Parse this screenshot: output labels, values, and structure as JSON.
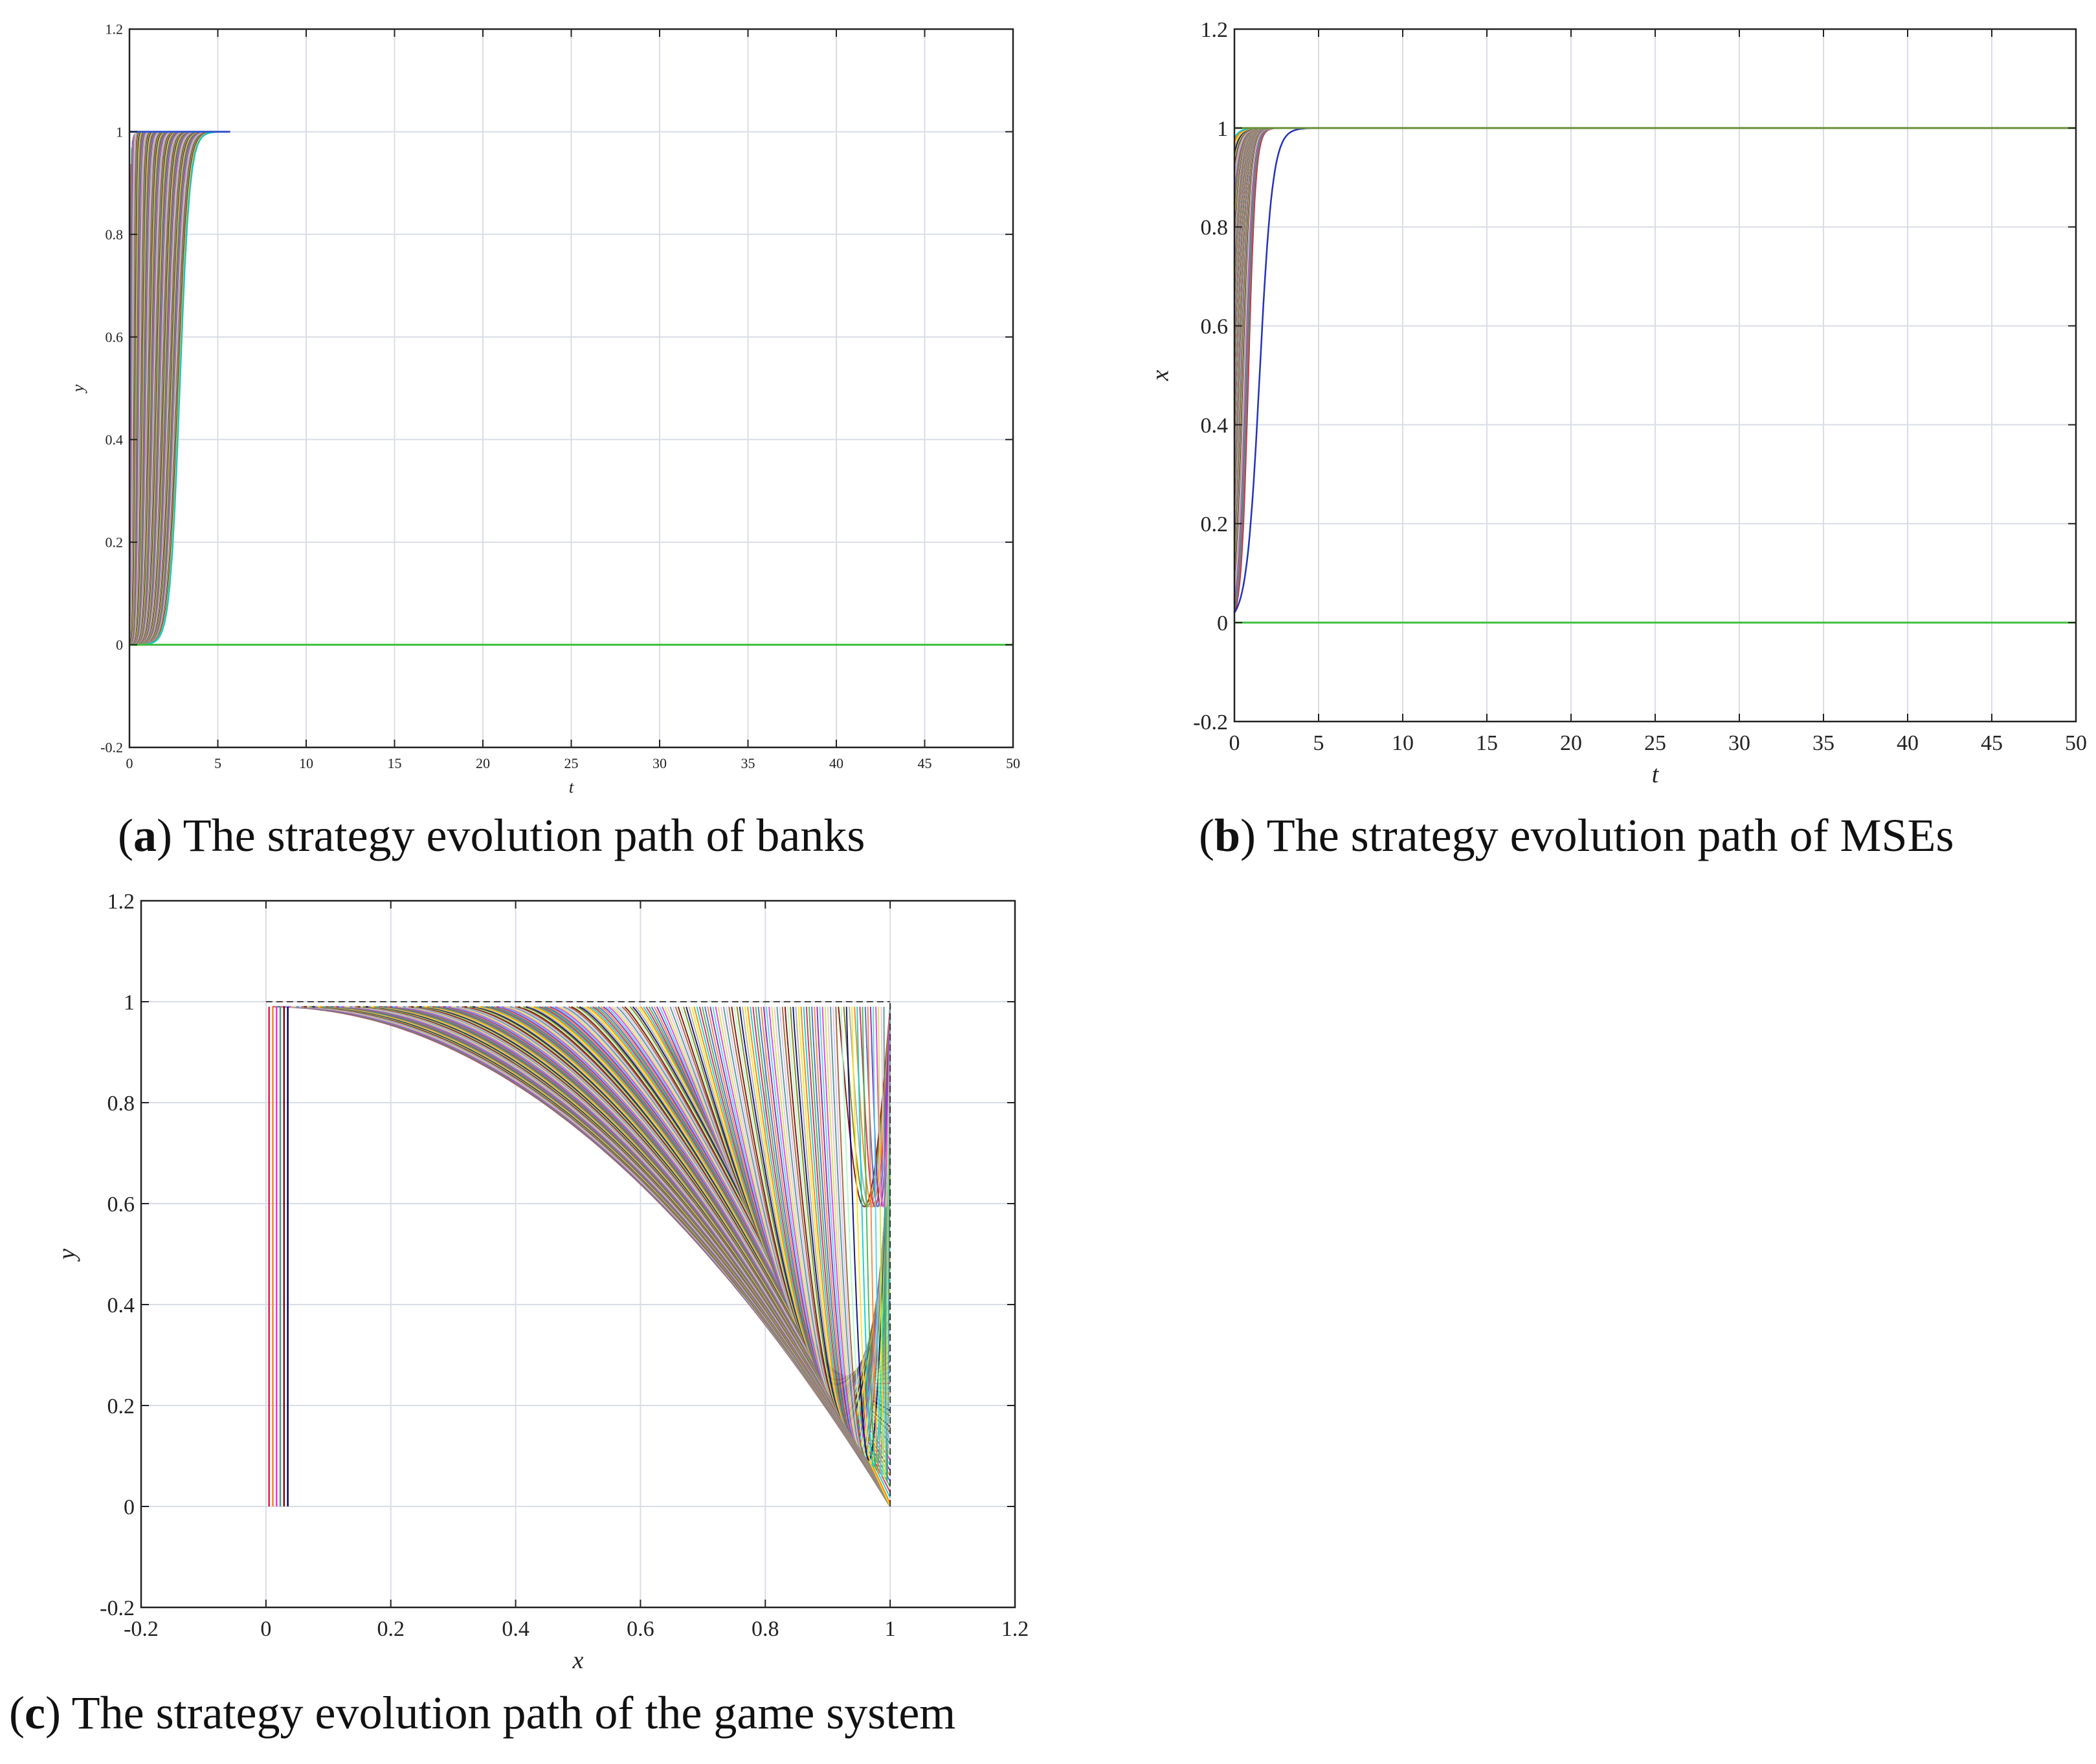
{
  "captions": {
    "a": {
      "letter": "a",
      "text": " The strategy evolution path of banks"
    },
    "b": {
      "letter": "b",
      "text": " The strategy evolution path of MSEs"
    },
    "c": {
      "letter": "c",
      "text": " The strategy evolution path of the game system"
    }
  },
  "chart_data": [
    {
      "id": "a",
      "type": "line",
      "title": "",
      "xlabel": "t",
      "ylabel": "y",
      "xlim": [
        0,
        50
      ],
      "ylim": [
        -0.2,
        1.2
      ],
      "xticks": [
        "0",
        "5",
        "10",
        "15",
        "20",
        "25",
        "30",
        "35",
        "40",
        "45",
        "50"
      ],
      "yticks": [
        "-0.2",
        "0",
        "0.2",
        "0.4",
        "0.6",
        "0.8",
        "1",
        "1.2"
      ],
      "grid": true,
      "legend": "none",
      "description_data": {
        "family": "many trajectories y(t) rising from 0 to 1 between t=0 and t=5.7, steady state y=1; a flat line at y=0 across 0..50",
        "rise_end_range": [
          0.1,
          5.7
        ],
        "flat_line_y": 0,
        "top_line_y": 1,
        "top_line_xrange": [
          0,
          5.7
        ]
      }
    },
    {
      "id": "b",
      "type": "line",
      "title": "",
      "xlabel": "t",
      "ylabel": "x",
      "xlim": [
        0,
        50
      ],
      "ylim": [
        -0.2,
        1.2
      ],
      "xticks": [
        "0",
        "5",
        "10",
        "15",
        "20",
        "25",
        "30",
        "35",
        "40",
        "45",
        "50"
      ],
      "yticks": [
        "-0.2",
        "0",
        "0.2",
        "0.4",
        "0.6",
        "0.8",
        "1",
        "1.2"
      ],
      "grid": true,
      "legend": "none",
      "description_data": {
        "family": "many trajectories x(t) rising from near 0 to 1 within t=0..4, then constant at 1 to t=50; a flat line at x=0",
        "rise_end_range": [
          0.5,
          4
        ],
        "flat_line_y": 0,
        "top_line_y": 1
      }
    },
    {
      "id": "c",
      "type": "line",
      "title": "",
      "xlabel": "x",
      "ylabel": "y",
      "xlim": [
        -0.2,
        1.2
      ],
      "ylim": [
        -0.2,
        1.2
      ],
      "xticks": [
        "-0.2",
        "0",
        "0.2",
        "0.4",
        "0.6",
        "0.8",
        "1",
        "1.2"
      ],
      "yticks": [
        "-0.2",
        "0",
        "0.2",
        "0.4",
        "0.6",
        "0.8",
        "1",
        "1.2"
      ],
      "grid": true,
      "legend": "none",
      "description_data": {
        "family": "phase trajectories starting at y≈0.99 for x0 in 0.01..0.99, descending as x grows, all converging to (1,0) or (1,1)",
        "start_y": 0.99,
        "start_x_range": [
          0.01,
          0.99
        ],
        "sinks": [
          [
            1,
            0
          ],
          [
            1,
            1
          ]
        ],
        "box": {
          "x": [
            0,
            1
          ],
          "y": [
            0,
            1
          ]
        }
      }
    }
  ],
  "palette": [
    "#e6194b",
    "#3cb44b",
    "#4363d8",
    "#f58231",
    "#911eb4",
    "#42d4f4",
    "#f032e6",
    "#bfef45",
    "#fabed4",
    "#469990",
    "#dcbeff",
    "#9a6324",
    "#800000",
    "#aaffc3",
    "#808000",
    "#000075",
    "#a9a9a9",
    "#ffe119",
    "#ff7f00",
    "#00ced1"
  ],
  "grid_color": "#d9dde6",
  "flat_line_color": "#3fbf3f"
}
